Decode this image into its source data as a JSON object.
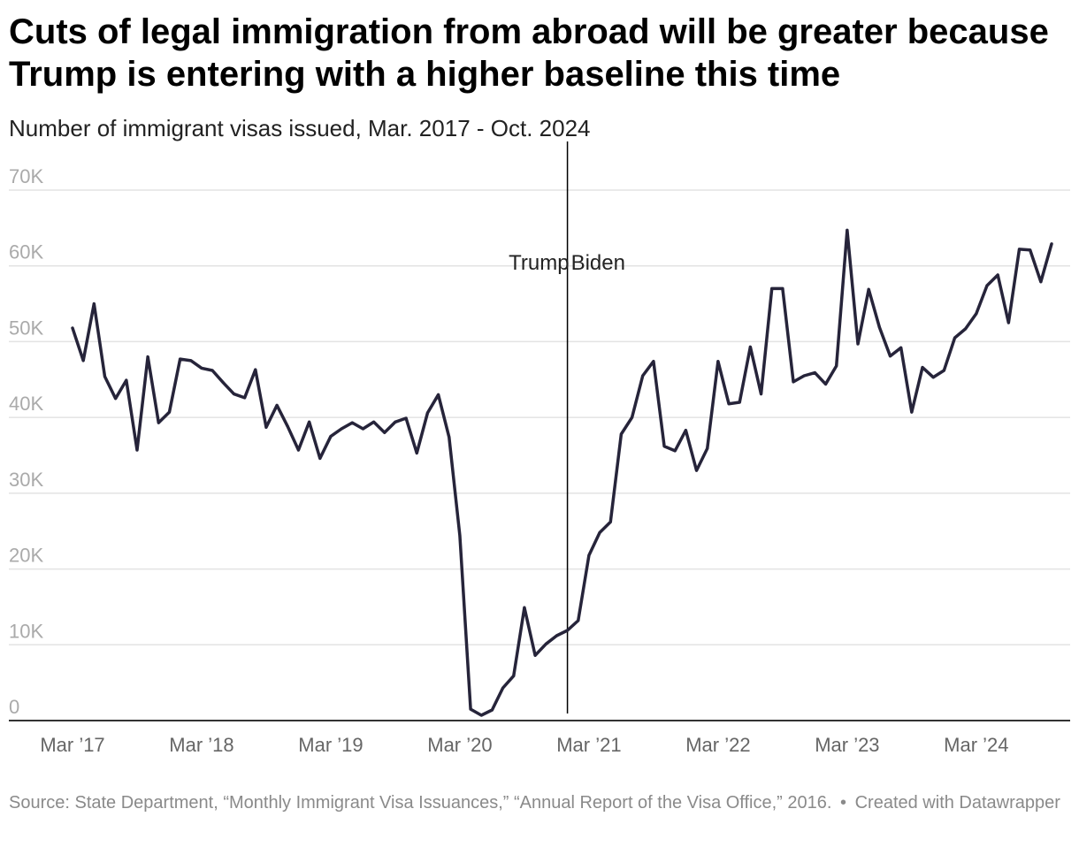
{
  "header": {
    "title": "Cuts of legal immigration from abroad will be greater because Trump is entering with a higher baseline this time",
    "subtitle": "Number of immigrant visas issued, Mar. 2017 - Oct. 2024"
  },
  "footer": {
    "source": "Source: State Department, “Monthly Immigrant Visa Issuances,” “Annual Report of the Visa Office,” 2016.",
    "separator": "•",
    "credit": "Created with Datawrapper"
  },
  "colors": {
    "line": "#26243a",
    "grid": "#e3e3e3",
    "tick_text": "#aaaaaa",
    "x_tick_text": "#666666",
    "annotation_line": "#000000"
  },
  "chart_data": {
    "type": "line",
    "title": "Cuts of legal immigration from abroad will be greater because Trump is entering with a higher baseline this time",
    "subtitle": "Number of immigrant visas issued, Mar. 2017 - Oct. 2024",
    "xlabel": "",
    "ylabel": "",
    "ylim": [
      0,
      70000
    ],
    "xlim": [
      "2017-03",
      "2024-10"
    ],
    "grid": true,
    "y_ticks": [
      {
        "value": 0,
        "label": "0"
      },
      {
        "value": 10000,
        "label": "10K"
      },
      {
        "value": 20000,
        "label": "20K"
      },
      {
        "value": 30000,
        "label": "30K"
      },
      {
        "value": 40000,
        "label": "40K"
      },
      {
        "value": 50000,
        "label": "50K"
      },
      {
        "value": 60000,
        "label": "60K"
      },
      {
        "value": 70000,
        "label": "70K"
      }
    ],
    "x_ticks": [
      {
        "value": "2017-03",
        "label": "Mar ’17"
      },
      {
        "value": "2018-03",
        "label": "Mar ’18"
      },
      {
        "value": "2019-03",
        "label": "Mar ’19"
      },
      {
        "value": "2020-03",
        "label": "Mar ’20"
      },
      {
        "value": "2021-03",
        "label": "Mar ’21"
      },
      {
        "value": "2022-03",
        "label": "Mar ’22"
      },
      {
        "value": "2023-03",
        "label": "Mar ’23"
      },
      {
        "value": "2024-03",
        "label": "Mar ’24"
      }
    ],
    "annotations": [
      {
        "type": "vline",
        "x": "2021-01",
        "left_label": "Trump",
        "right_label": "Biden"
      }
    ],
    "x": [
      "2017-03",
      "2017-04",
      "2017-05",
      "2017-06",
      "2017-07",
      "2017-08",
      "2017-09",
      "2017-10",
      "2017-11",
      "2017-12",
      "2018-01",
      "2018-02",
      "2018-03",
      "2018-04",
      "2018-05",
      "2018-06",
      "2018-07",
      "2018-08",
      "2018-09",
      "2018-10",
      "2018-11",
      "2018-12",
      "2019-01",
      "2019-02",
      "2019-03",
      "2019-04",
      "2019-05",
      "2019-06",
      "2019-07",
      "2019-08",
      "2019-09",
      "2019-10",
      "2019-11",
      "2019-12",
      "2020-01",
      "2020-02",
      "2020-03",
      "2020-04",
      "2020-05",
      "2020-06",
      "2020-07",
      "2020-08",
      "2020-09",
      "2020-10",
      "2020-11",
      "2020-12",
      "2021-01",
      "2021-02",
      "2021-03",
      "2021-04",
      "2021-05",
      "2021-06",
      "2021-07",
      "2021-08",
      "2021-09",
      "2021-10",
      "2021-11",
      "2021-12",
      "2022-01",
      "2022-02",
      "2022-03",
      "2022-04",
      "2022-05",
      "2022-06",
      "2022-07",
      "2022-08",
      "2022-09",
      "2022-10",
      "2022-11",
      "2022-12",
      "2023-01",
      "2023-02",
      "2023-03",
      "2023-04",
      "2023-05",
      "2023-06",
      "2023-07",
      "2023-08",
      "2023-09",
      "2023-10",
      "2023-11",
      "2023-12",
      "2024-01",
      "2024-02",
      "2024-03",
      "2024-04",
      "2024-05",
      "2024-06",
      "2024-07",
      "2024-08",
      "2024-09",
      "2024-10"
    ],
    "series": [
      {
        "values": [
          51800,
          47500,
          55000,
          45400,
          42500,
          44900,
          35700,
          48000,
          39300,
          40700,
          47700,
          47500,
          46500,
          46200,
          44600,
          43100,
          42600,
          46300,
          38700,
          41600,
          38800,
          35700,
          39400,
          34600,
          37500,
          38500,
          39300,
          38500,
          39400,
          38000,
          39400,
          39900,
          35300,
          40600,
          43000,
          37400,
          24400,
          1500,
          700,
          1400,
          4300,
          5900,
          14900,
          8600,
          10100,
          11200,
          11900,
          13200,
          21800,
          24800,
          26200,
          37800,
          40000,
          45500,
          47400,
          36200,
          35600,
          38300,
          33000,
          35900,
          47400,
          41800,
          42000,
          49300,
          43100,
          57000,
          57000,
          44700,
          45500,
          45900,
          44400,
          46800,
          64700,
          49700,
          56900,
          51900,
          48100,
          49200,
          40700,
          46600,
          45300,
          46200,
          50500,
          51700,
          53700,
          57400,
          58800,
          52500,
          62200,
          62100,
          57900,
          62900
        ]
      }
    ]
  }
}
